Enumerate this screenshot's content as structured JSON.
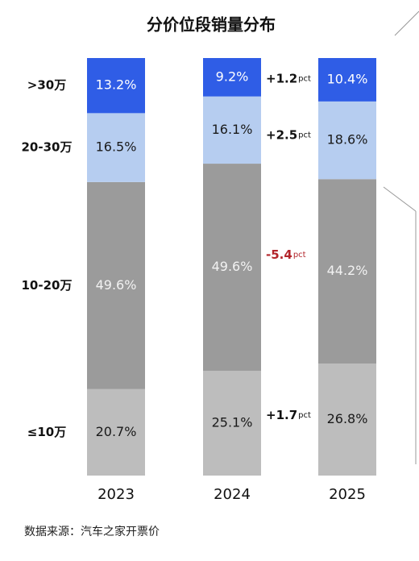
{
  "chart_data": {
    "type": "stacked_bar",
    "title": "分价位段销量分布",
    "categories": [
      "2023",
      "2024",
      "2025"
    ],
    "ylim": [
      0,
      100
    ],
    "series": [
      {
        "name": "≤10万",
        "color": "#bdbdbd",
        "label_color": "#1a1a1a",
        "values": [
          20.7,
          25.1,
          26.8
        ],
        "value_labels": [
          "20.7%",
          "25.1%",
          "26.8%"
        ]
      },
      {
        "name": "10-20万",
        "color": "#9b9b9b",
        "label_color": "#f2f2f2",
        "values": [
          49.6,
          49.6,
          44.2
        ],
        "value_labels": [
          "49.6%",
          "49.6%",
          "44.2%"
        ]
      },
      {
        "name": "20-30万",
        "color": "#b6cdf0",
        "label_color": "#1a1a1a",
        "values": [
          16.5,
          16.1,
          18.6
        ],
        "value_labels": [
          "16.5%",
          "16.1%",
          "18.6%"
        ]
      },
      {
        "name": ">30万",
        "color": "#2f5de6",
        "label_color": "#ffffff",
        "values": [
          13.2,
          9.2,
          10.4
        ],
        "value_labels": [
          "13.2%",
          "9.2%",
          "10.4%"
        ]
      }
    ],
    "annotations": [
      {
        "series": 0,
        "text": "+1.7",
        "unit": "pct",
        "color": "#111111"
      },
      {
        "series": 1,
        "text": "-5.4",
        "unit": "pct",
        "color": "#b3262c"
      },
      {
        "series": 2,
        "text": "+2.5",
        "unit": "pct",
        "color": "#111111"
      },
      {
        "series": 3,
        "text": "+1.2",
        "unit": "pct",
        "color": "#111111"
      }
    ],
    "source": "数据来源：汽车之家开票价"
  }
}
